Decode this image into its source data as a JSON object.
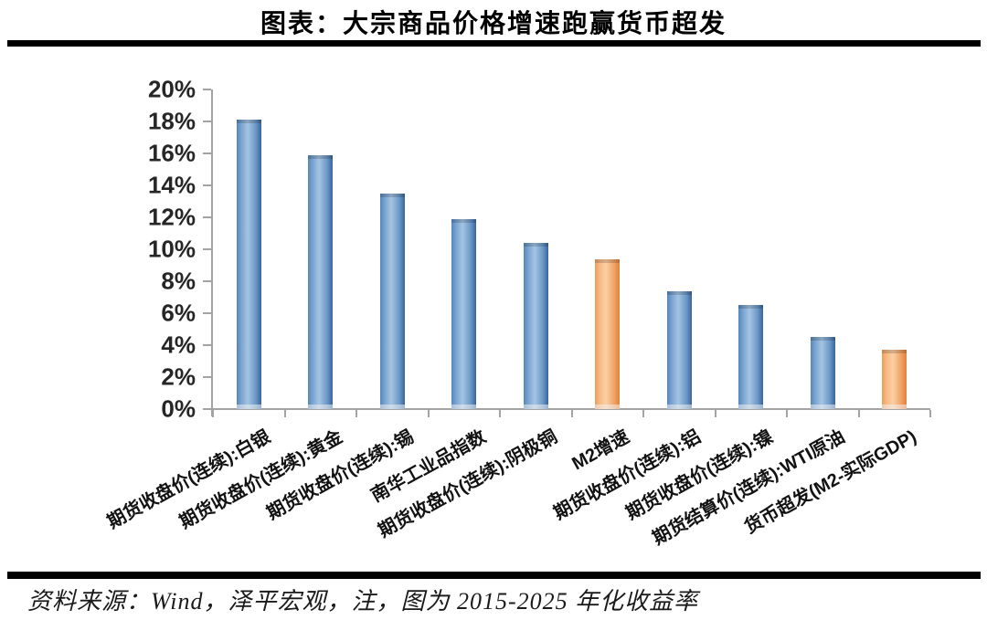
{
  "title": "图表：大宗商品价格增速跑赢货币超发",
  "footer": "资料来源：Wind，泽平宏观，注，图为 2015-2025 年化收益率",
  "colors": {
    "bar_blue": "#4f81bd",
    "bar_orange": "#f79646",
    "axis": "#a3a3a3",
    "divider": "#000000"
  },
  "chart_data": {
    "type": "bar",
    "title": "图表：大宗商品价格增速跑赢货币超发",
    "categories": [
      "期货收盘价(连续):白银",
      "期货收盘价(连续):黄金",
      "期货收盘价(连续):锡",
      "南华工业品指数",
      "期货收盘价(连续):阴极铜",
      "M2增速",
      "期货收盘价(连续):铝",
      "期货收盘价(连续):镍",
      "期货结算价(连续):WTI原油",
      "货币超发(M2-实际GDP)"
    ],
    "values": [
      18.1,
      15.9,
      13.5,
      11.9,
      10.4,
      9.4,
      7.4,
      6.5,
      4.5,
      3.7
    ],
    "bar_colors": [
      "blue",
      "blue",
      "blue",
      "blue",
      "blue",
      "orange",
      "blue",
      "blue",
      "blue",
      "orange"
    ],
    "y_tick_labels": [
      "0%",
      "2%",
      "4%",
      "6%",
      "8%",
      "10%",
      "12%",
      "14%",
      "16%",
      "18%",
      "20%"
    ],
    "ylim": [
      0,
      20
    ],
    "y_tick_step": 2,
    "xlabel": "",
    "ylabel": "",
    "grid": false,
    "legend": "none",
    "note": "图为 2015-2025 年化收益率",
    "source": "Wind，泽平宏观"
  }
}
